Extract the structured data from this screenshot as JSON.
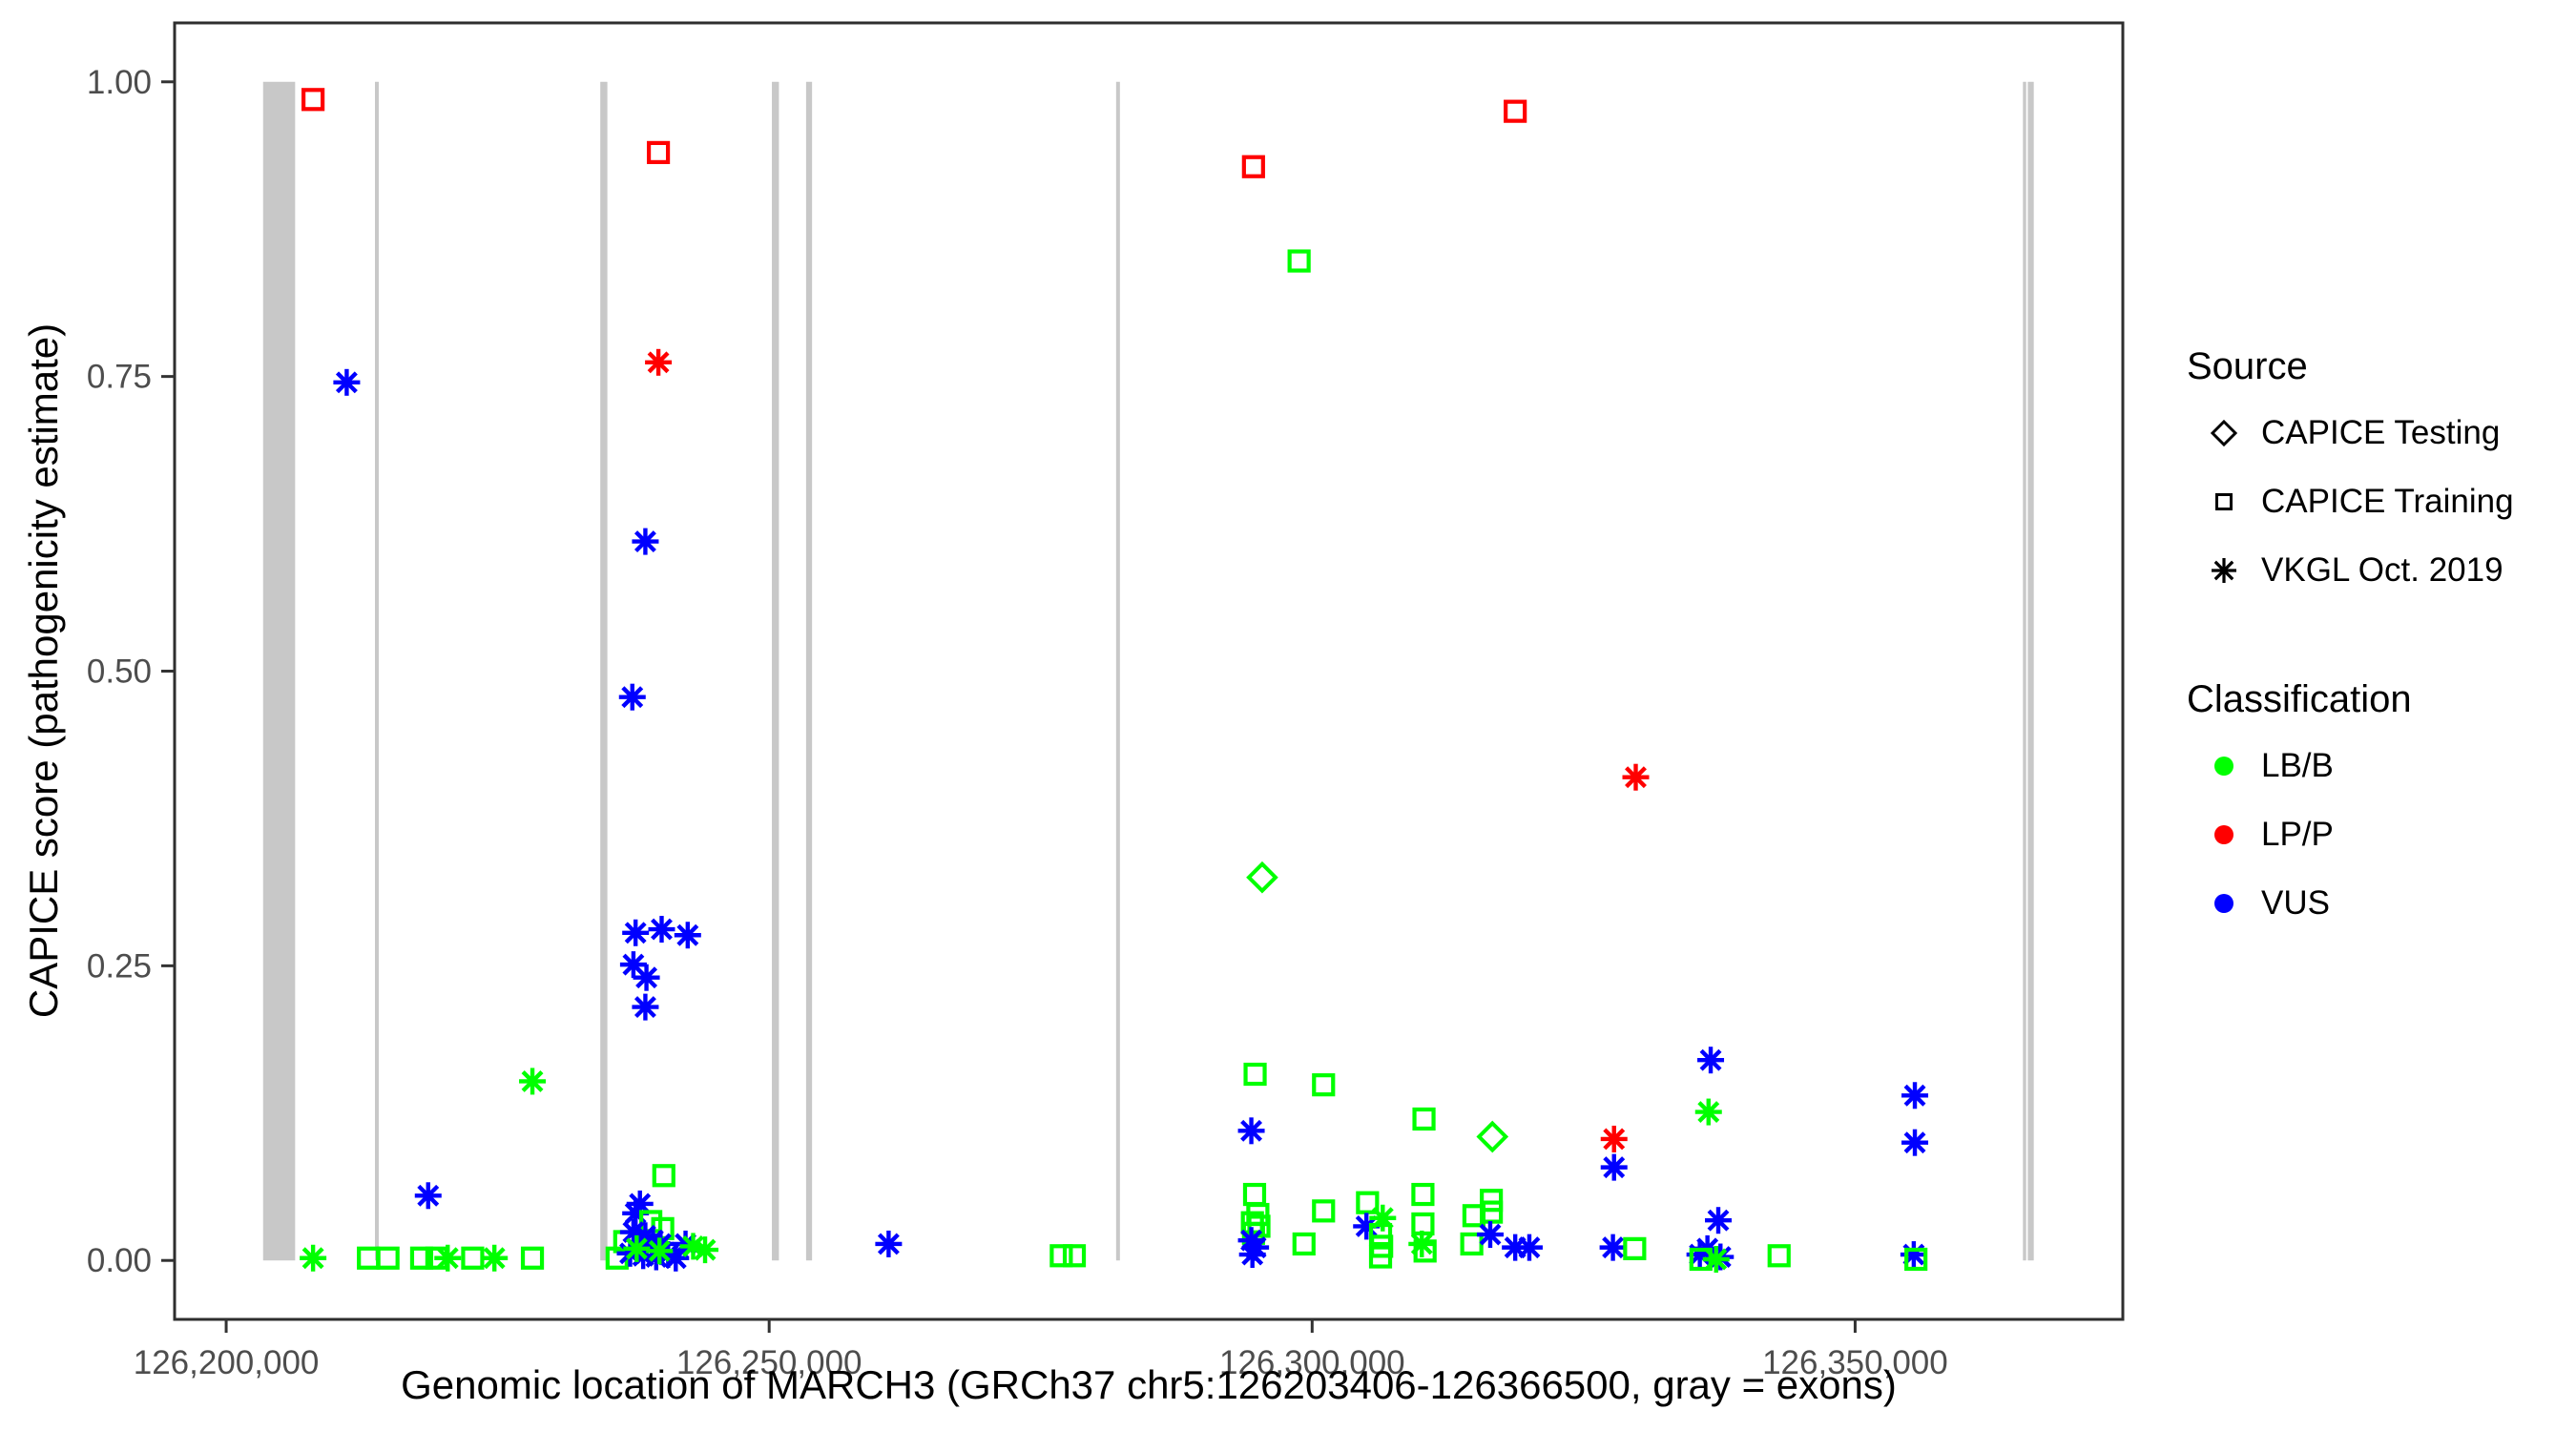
{
  "chart_data": {
    "type": "scatter",
    "title": "",
    "xlabel": "Genomic location of MARCH3 (GRCh37 chr5:126203406-126366500, gray = exons)",
    "ylabel": "CAPICE score (pathogenicity estimate)",
    "x_axis": {
      "range": [
        126195250,
        126374650
      ],
      "ticks": [
        {
          "value": 126200000,
          "label": "126,200,000"
        },
        {
          "value": 126250000,
          "label": "126,250,000"
        },
        {
          "value": 126300000,
          "label": "126,300,000"
        },
        {
          "value": 126350000,
          "label": "126,350,000"
        }
      ]
    },
    "y_axis": {
      "range": [
        -0.05,
        1.05
      ],
      "ticks": [
        {
          "value": 0.0,
          "label": "0.00"
        },
        {
          "value": 0.25,
          "label": "0.25"
        },
        {
          "value": 0.5,
          "label": "0.50"
        },
        {
          "value": 0.75,
          "label": "0.75"
        },
        {
          "value": 1.0,
          "label": "1.00"
        }
      ]
    },
    "grid": false,
    "legend_position": "right",
    "exon_note": "gray vertical bars mark exons, drawn from score 0 to 1",
    "exons": [
      [
        126203400,
        126206350
      ],
      [
        126213700,
        126214050
      ],
      [
        126234450,
        126235100
      ],
      [
        126250250,
        126250900
      ],
      [
        126253400,
        126253950
      ],
      [
        126281950,
        126282300
      ],
      [
        126365450,
        126365750
      ],
      [
        126365900,
        126366450
      ]
    ],
    "legend": {
      "source_title": "Source",
      "source_items": [
        {
          "label": "CAPICE Testing",
          "shape": "diamond"
        },
        {
          "label": "CAPICE Training",
          "shape": "square"
        },
        {
          "label": "VKGL Oct. 2019",
          "shape": "asterisk"
        }
      ],
      "classification_title": "Classification",
      "classification_items": [
        {
          "label": "LB/B",
          "color": "#00FF00"
        },
        {
          "label": "LP/P",
          "color": "#FF0000"
        },
        {
          "label": "VUS",
          "color": "#0000FF"
        }
      ]
    },
    "colors": {
      "LB/B": "#00FF00",
      "LP/P": "#FF0000",
      "VUS": "#0000FF"
    },
    "shapes": {
      "CAPICE Testing": "diamond",
      "CAPICE Training": "square",
      "VKGL Oct. 2019": "asterisk"
    },
    "exon_color": "#C8C8C8",
    "points_fields": [
      "genomic_position",
      "capice_score",
      "source",
      "classification"
    ],
    "points": [
      [
        126208000,
        0.985,
        "CAPICE Training",
        "LP/P"
      ],
      [
        126208000,
        0.002,
        "VKGL Oct. 2019",
        "LB/B"
      ],
      [
        126211100,
        0.745,
        "VKGL Oct. 2019",
        "VUS"
      ],
      [
        126213100,
        0.002,
        "CAPICE Training",
        "LB/B"
      ],
      [
        126214900,
        0.002,
        "CAPICE Training",
        "LB/B"
      ],
      [
        126218000,
        0.002,
        "CAPICE Training",
        "LB/B"
      ],
      [
        126218600,
        0.055,
        "VKGL Oct. 2019",
        "VUS"
      ],
      [
        126219400,
        0.002,
        "CAPICE Training",
        "LB/B"
      ],
      [
        126220400,
        0.002,
        "VKGL Oct. 2019",
        "LB/B"
      ],
      [
        126222700,
        0.002,
        "CAPICE Training",
        "LB/B"
      ],
      [
        126224700,
        0.002,
        "VKGL Oct. 2019",
        "LB/B"
      ],
      [
        126228200,
        0.002,
        "CAPICE Training",
        "LB/B"
      ],
      [
        126228200,
        0.152,
        "VKGL Oct. 2019",
        "LB/B"
      ],
      [
        126239800,
        0.94,
        "CAPICE Training",
        "LP/P"
      ],
      [
        126239800,
        0.762,
        "VKGL Oct. 2019",
        "LP/P"
      ],
      [
        126238600,
        0.61,
        "VKGL Oct. 2019",
        "VUS"
      ],
      [
        126237400,
        0.478,
        "VKGL Oct. 2019",
        "VUS"
      ],
      [
        126237700,
        0.278,
        "VKGL Oct. 2019",
        "VUS"
      ],
      [
        126240100,
        0.281,
        "VKGL Oct. 2019",
        "VUS"
      ],
      [
        126242500,
        0.276,
        "VKGL Oct. 2019",
        "VUS"
      ],
      [
        126237500,
        0.251,
        "VKGL Oct. 2019",
        "VUS"
      ],
      [
        126238700,
        0.24,
        "VKGL Oct. 2019",
        "VUS"
      ],
      [
        126238600,
        0.215,
        "VKGL Oct. 2019",
        "VUS"
      ],
      [
        126240300,
        0.072,
        "CAPICE Training",
        "LB/B"
      ],
      [
        126238100,
        0.048,
        "VKGL Oct. 2019",
        "VUS"
      ],
      [
        126237700,
        0.04,
        "VKGL Oct. 2019",
        "VUS"
      ],
      [
        126236000,
        0.002,
        "CAPICE Training",
        "LB/B"
      ],
      [
        126236700,
        0.016,
        "CAPICE Training",
        "LB/B"
      ],
      [
        126239100,
        0.033,
        "CAPICE Training",
        "LB/B"
      ],
      [
        126240200,
        0.027,
        "CAPICE Training",
        "LB/B"
      ],
      [
        126237500,
        0.024,
        "VKGL Oct. 2019",
        "VUS"
      ],
      [
        126238600,
        0.021,
        "VKGL Oct. 2019",
        "VUS"
      ],
      [
        126239300,
        0.017,
        "VKGL Oct. 2019",
        "VUS"
      ],
      [
        126240000,
        0.014,
        "VKGL Oct. 2019",
        "VUS"
      ],
      [
        126242300,
        0.014,
        "VKGL Oct. 2019",
        "VUS"
      ],
      [
        126237200,
        0.006,
        "VKGL Oct. 2019",
        "VUS"
      ],
      [
        126238400,
        0.004,
        "VKGL Oct. 2019",
        "VUS"
      ],
      [
        126239600,
        0.003,
        "VKGL Oct. 2019",
        "VUS"
      ],
      [
        126240700,
        0.005,
        "VKGL Oct. 2019",
        "VUS"
      ],
      [
        126241400,
        0.002,
        "VKGL Oct. 2019",
        "VUS"
      ],
      [
        126237800,
        0.01,
        "VKGL Oct. 2019",
        "LB/B"
      ],
      [
        126239900,
        0.008,
        "VKGL Oct. 2019",
        "LB/B"
      ],
      [
        126243000,
        0.012,
        "VKGL Oct. 2019",
        "LB/B"
      ],
      [
        126244100,
        0.009,
        "VKGL Oct. 2019",
        "LB/B"
      ],
      [
        126261000,
        0.014,
        "VKGL Oct. 2019",
        "VUS"
      ],
      [
        126276900,
        0.004,
        "CAPICE Training",
        "LB/B"
      ],
      [
        126278100,
        0.004,
        "CAPICE Training",
        "LB/B"
      ],
      [
        126294600,
        0.928,
        "CAPICE Training",
        "LP/P"
      ],
      [
        126298800,
        0.848,
        "CAPICE Training",
        "LB/B"
      ],
      [
        126295400,
        0.325,
        "CAPICE Testing",
        "LB/B"
      ],
      [
        126294750,
        0.158,
        "CAPICE Training",
        "LB/B"
      ],
      [
        126294400,
        0.11,
        "VKGL Oct. 2019",
        "VUS"
      ],
      [
        126294700,
        0.056,
        "CAPICE Training",
        "LB/B"
      ],
      [
        126295000,
        0.039,
        "CAPICE Training",
        "LB/B"
      ],
      [
        126294500,
        0.032,
        "CAPICE Training",
        "LB/B"
      ],
      [
        126295100,
        0.029,
        "CAPICE Training",
        "LB/B"
      ],
      [
        126294600,
        0.023,
        "CAPICE Training",
        "LB/B"
      ],
      [
        126294400,
        0.017,
        "VKGL Oct. 2019",
        "VUS"
      ],
      [
        126294800,
        0.011,
        "VKGL Oct. 2019",
        "VUS"
      ],
      [
        126294500,
        0.005,
        "VKGL Oct. 2019",
        "VUS"
      ],
      [
        126299250,
        0.014,
        "CAPICE Training",
        "LB/B"
      ],
      [
        126301050,
        0.149,
        "CAPICE Training",
        "LB/B"
      ],
      [
        126301050,
        0.042,
        "CAPICE Training",
        "LB/B"
      ],
      [
        126305100,
        0.049,
        "CAPICE Training",
        "LB/B"
      ],
      [
        126305000,
        0.029,
        "VKGL Oct. 2019",
        "VUS"
      ],
      [
        126306500,
        0.036,
        "VKGL Oct. 2019",
        "LB/B"
      ],
      [
        126306300,
        0.022,
        "CAPICE Training",
        "LB/B"
      ],
      [
        126306400,
        0.012,
        "CAPICE Training",
        "LB/B"
      ],
      [
        126306300,
        0.003,
        "CAPICE Training",
        "LB/B"
      ],
      [
        126310300,
        0.12,
        "CAPICE Training",
        "LB/B"
      ],
      [
        126310200,
        0.056,
        "CAPICE Training",
        "LB/B"
      ],
      [
        126310200,
        0.031,
        "CAPICE Training",
        "LB/B"
      ],
      [
        126310100,
        0.014,
        "VKGL Oct. 2019",
        "LB/B"
      ],
      [
        126310400,
        0.008,
        "CAPICE Training",
        "LB/B"
      ],
      [
        126314900,
        0.038,
        "CAPICE Training",
        "LB/B"
      ],
      [
        126316500,
        0.051,
        "CAPICE Training",
        "LB/B"
      ],
      [
        126316500,
        0.041,
        "CAPICE Training",
        "LB/B"
      ],
      [
        126314700,
        0.014,
        "CAPICE Training",
        "LB/B"
      ],
      [
        126316400,
        0.022,
        "VKGL Oct. 2019",
        "VUS"
      ],
      [
        126316600,
        0.105,
        "CAPICE Testing",
        "LB/B"
      ],
      [
        126318700,
        0.011,
        "VKGL Oct. 2019",
        "VUS"
      ],
      [
        126320000,
        0.011,
        "VKGL Oct. 2019",
        "VUS"
      ],
      [
        126318700,
        0.975,
        "CAPICE Training",
        "LP/P"
      ],
      [
        126327800,
        0.103,
        "VKGL Oct. 2019",
        "LP/P"
      ],
      [
        126327800,
        0.079,
        "VKGL Oct. 2019",
        "VUS"
      ],
      [
        126327700,
        0.011,
        "VKGL Oct. 2019",
        "VUS"
      ],
      [
        126329700,
        0.01,
        "CAPICE Training",
        "LB/B"
      ],
      [
        126329800,
        0.41,
        "VKGL Oct. 2019",
        "LP/P"
      ],
      [
        126336700,
        0.17,
        "VKGL Oct. 2019",
        "VUS"
      ],
      [
        126336500,
        0.126,
        "VKGL Oct. 2019",
        "LB/B"
      ],
      [
        126337400,
        0.034,
        "VKGL Oct. 2019",
        "VUS"
      ],
      [
        126336400,
        0.01,
        "VKGL Oct. 2019",
        "VUS"
      ],
      [
        126335700,
        0.005,
        "VKGL Oct. 2019",
        "VUS"
      ],
      [
        126337600,
        0.003,
        "VKGL Oct. 2019",
        "VUS"
      ],
      [
        126335800,
        0.001,
        "CAPICE Training",
        "LB/B"
      ],
      [
        126337200,
        0.001,
        "VKGL Oct. 2019",
        "LB/B"
      ],
      [
        126343000,
        0.004,
        "CAPICE Training",
        "LB/B"
      ],
      [
        126355500,
        0.14,
        "VKGL Oct. 2019",
        "VUS"
      ],
      [
        126355500,
        0.1,
        "VKGL Oct. 2019",
        "VUS"
      ],
      [
        126355400,
        0.005,
        "VKGL Oct. 2019",
        "VUS"
      ],
      [
        126355600,
        0.001,
        "CAPICE Training",
        "LB/B"
      ]
    ],
    "style": {
      "panel_border_color": "#2E2E2E",
      "tick_color": "#333333",
      "tick_label_color": "#4D4D4D",
      "background": "#FFFFFF"
    }
  }
}
